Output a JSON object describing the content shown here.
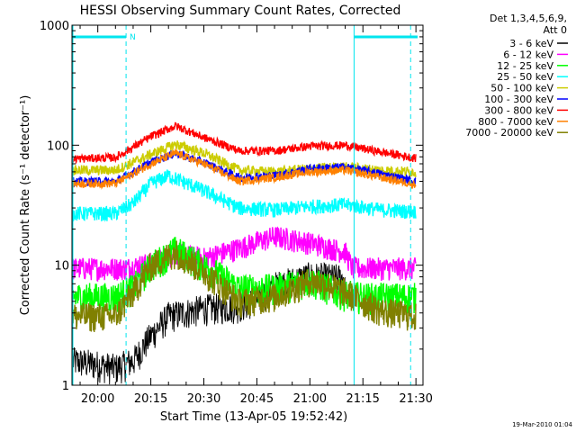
{
  "chart_data": {
    "type": "line",
    "title": "HESSI Observing Summary Count Rates, Corrected",
    "xlabel": "Start Time (13-Apr-05 19:52:42)",
    "ylabel": "Corrected Count Rate (s⁻¹ detector⁻¹)",
    "y_scale": "log",
    "ylim": [
      1,
      1000
    ],
    "xlim": [
      "19:52:42",
      "21:32:00"
    ],
    "x_ticks": [
      "20:00",
      "20:15",
      "20:30",
      "20:45",
      "21:00",
      "21:15",
      "21:30"
    ],
    "y_ticks": [
      "1",
      "10",
      "100",
      "1000"
    ],
    "grid": false,
    "legend": {
      "position": "right-outside",
      "header": [
        "Det 1,3,4,5,6,9,",
        "Att 0"
      ]
    },
    "flag_bar_label": "N",
    "timestamp": "19-Mar-2010 01:04",
    "series": [
      {
        "name": "3 - 6 keV",
        "color": "#000000",
        "x": [
          "19:53",
          "20:00",
          "20:05",
          "20:10",
          "20:15",
          "20:20",
          "20:30",
          "20:40",
          "20:45",
          "20:50",
          "21:00",
          "21:05",
          "21:10"
        ],
        "values": [
          1.6,
          1.5,
          1.4,
          1.6,
          2.6,
          3.8,
          4.4,
          4.6,
          5.2,
          6.8,
          8.2,
          8.0,
          7.8
        ]
      },
      {
        "name": "6 - 12 keV",
        "color": "#ff00ff",
        "x": [
          "19:53",
          "20:08",
          "20:15",
          "20:22",
          "20:30",
          "20:40",
          "20:50",
          "21:00",
          "21:10",
          "21:12",
          "21:20",
          "21:30"
        ],
        "values": [
          9.5,
          9.5,
          10.5,
          12.5,
          11.5,
          14.0,
          17.5,
          15.5,
          13.0,
          9.5,
          9.5,
          9.5
        ]
      },
      {
        "name": "12 - 25 keV",
        "color": "#00ff00",
        "x": [
          "19:53",
          "20:05",
          "20:10",
          "20:15",
          "20:22",
          "20:30",
          "20:40",
          "20:50",
          "21:00",
          "21:05",
          "21:10",
          "21:15",
          "21:20",
          "21:30"
        ],
        "values": [
          5.5,
          5.5,
          6.5,
          10.0,
          13.5,
          10.0,
          6.5,
          6.5,
          7.5,
          6.5,
          5.8,
          5.5,
          5.5,
          5.5
        ]
      },
      {
        "name": "25 - 50 keV",
        "color": "#00ffff",
        "x": [
          "19:53",
          "20:05",
          "20:10",
          "20:15",
          "20:20",
          "20:30",
          "20:40",
          "20:50",
          "21:00",
          "21:10",
          "21:20",
          "21:30"
        ],
        "values": [
          27,
          27,
          33,
          48,
          56,
          42,
          30,
          29,
          31,
          32,
          29,
          28
        ]
      },
      {
        "name": "50 - 100 keV",
        "color": "#cccc00",
        "x": [
          "19:53",
          "20:05",
          "20:15",
          "20:22",
          "20:30",
          "20:40",
          "20:50",
          "21:00",
          "21:10",
          "21:20",
          "21:30"
        ],
        "values": [
          62,
          62,
          84,
          102,
          86,
          62,
          60,
          64,
          66,
          62,
          60
        ]
      },
      {
        "name": "100 - 300 keV",
        "color": "#0000ff",
        "x": [
          "19:53",
          "20:05",
          "20:15",
          "20:22",
          "20:30",
          "20:40",
          "20:50",
          "21:00",
          "21:10",
          "21:20",
          "21:30"
        ],
        "values": [
          50,
          50,
          72,
          86,
          72,
          54,
          56,
          64,
          66,
          58,
          50
        ]
      },
      {
        "name": "300 - 800 keV",
        "color": "#ff0000",
        "x": [
          "19:53",
          "20:05",
          "20:15",
          "20:22",
          "20:30",
          "20:40",
          "20:50",
          "21:00",
          "21:10",
          "21:20",
          "21:30"
        ],
        "values": [
          77,
          79,
          118,
          145,
          116,
          90,
          90,
          98,
          100,
          88,
          78
        ]
      },
      {
        "name": "800 - 7000 keV",
        "color": "#ff8000",
        "x": [
          "19:53",
          "20:05",
          "20:15",
          "20:22",
          "20:30",
          "20:40",
          "20:50",
          "21:00",
          "21:10",
          "21:20",
          "21:30"
        ],
        "values": [
          48,
          48,
          70,
          86,
          70,
          50,
          54,
          60,
          62,
          54,
          47
        ]
      },
      {
        "name": "7000 - 20000 keV",
        "color": "#808000",
        "x": [
          "19:53",
          "20:05",
          "20:10",
          "20:15",
          "20:22",
          "20:30",
          "20:40",
          "20:50",
          "21:00",
          "21:05",
          "21:10",
          "21:15",
          "21:20",
          "21:30"
        ],
        "values": [
          3.8,
          3.8,
          6.0,
          10.0,
          13.0,
          9.0,
          5.0,
          5.5,
          7.5,
          7.0,
          6.0,
          5.0,
          4.2,
          3.8
        ]
      }
    ]
  }
}
